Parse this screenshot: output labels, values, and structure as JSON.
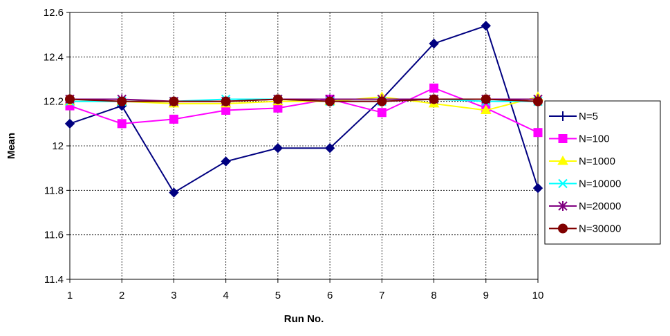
{
  "chart_data": {
    "type": "line",
    "title": "",
    "xlabel": "Run No.",
    "ylabel": "Mean",
    "x": [
      1,
      2,
      3,
      4,
      5,
      6,
      7,
      8,
      9,
      10
    ],
    "ylim": [
      11.4,
      12.6
    ],
    "yticks": [
      "11.4",
      "11.6",
      "11.8",
      "12",
      "12.2",
      "12.4",
      "12.6"
    ],
    "xticks": [
      "1",
      "2",
      "3",
      "4",
      "5",
      "6",
      "7",
      "8",
      "9",
      "10"
    ],
    "grid": true,
    "legend_position": "right",
    "series": [
      {
        "name": "N=5",
        "color": "#000080",
        "marker": "diamond",
        "values": [
          12.1,
          12.18,
          11.79,
          11.93,
          11.99,
          11.99,
          12.21,
          12.46,
          12.54,
          11.81
        ]
      },
      {
        "name": "N=100",
        "color": "#FF00FF",
        "marker": "square",
        "values": [
          12.18,
          12.1,
          12.12,
          12.16,
          12.17,
          12.21,
          12.15,
          12.26,
          12.17,
          12.06
        ]
      },
      {
        "name": "N=1000",
        "color": "#FFFF00",
        "marker": "triangle",
        "values": [
          12.2,
          12.2,
          12.19,
          12.19,
          12.2,
          12.2,
          12.22,
          12.19,
          12.16,
          12.22
        ]
      },
      {
        "name": "N=10000",
        "color": "#00FFFF",
        "marker": "x",
        "values": [
          12.2,
          12.2,
          12.2,
          12.21,
          12.21,
          12.2,
          12.2,
          12.21,
          12.2,
          12.2
        ]
      },
      {
        "name": "N=20000",
        "color": "#800080",
        "marker": "star",
        "values": [
          12.21,
          12.21,
          12.2,
          12.2,
          12.21,
          12.21,
          12.21,
          12.21,
          12.21,
          12.21
        ]
      },
      {
        "name": "N=30000",
        "color": "#800000",
        "marker": "circle",
        "values": [
          12.21,
          12.2,
          12.2,
          12.2,
          12.21,
          12.2,
          12.2,
          12.21,
          12.21,
          12.2
        ]
      }
    ]
  }
}
